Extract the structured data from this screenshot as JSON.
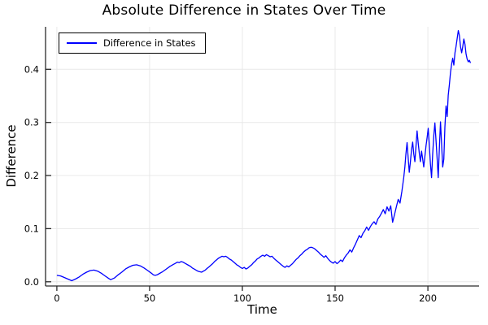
{
  "chart_data": {
    "type": "line",
    "title": "Absolute Difference in States Over Time",
    "xlabel": "Time",
    "ylabel": "Difference",
    "legend": {
      "position": "top-left",
      "entries": [
        "Difference in States"
      ]
    },
    "xlim": [
      -6.1,
      227.6
    ],
    "ylim": [
      -0.008,
      0.48
    ],
    "xticks": [
      0,
      50,
      100,
      150,
      200
    ],
    "xtick_labels": [
      "0",
      "50",
      "100",
      "150",
      "200"
    ],
    "yticks": [
      0.0,
      0.1,
      0.2,
      0.3,
      0.4
    ],
    "ytick_labels": [
      "0.0",
      "0.1",
      "0.2",
      "0.3",
      "0.4"
    ],
    "grid": true,
    "colors": {
      "line": "#0000ff",
      "grid": "#e8e8e8",
      "spine": "#2a2a2a",
      "text": "#000000",
      "background": "#ffffff"
    },
    "series": [
      {
        "name": "Difference in States",
        "color": "#0000ff",
        "x": [
          0,
          2,
          4,
          6,
          8,
          10,
          12,
          14,
          16,
          18,
          20,
          22,
          24,
          26,
          28,
          29,
          31,
          33,
          35,
          37,
          39,
          41,
          43,
          45,
          47,
          49,
          51,
          52,
          53,
          54,
          55,
          57,
          59,
          61,
          63,
          64,
          65,
          66,
          67,
          68,
          69,
          71,
          72,
          73,
          74,
          75,
          76,
          77,
          78,
          79,
          80,
          81,
          82,
          83,
          84,
          85,
          86,
          87,
          88,
          89,
          90,
          91,
          92,
          93,
          94,
          95,
          96,
          97,
          98,
          99,
          100,
          101,
          102,
          103,
          104,
          105,
          106,
          107,
          108,
          109,
          110,
          111,
          112,
          113,
          114,
          115,
          116,
          117,
          118,
          119,
          120,
          121,
          122,
          123,
          124,
          125,
          126,
          127,
          128,
          129,
          130,
          131,
          132,
          133,
          134,
          135,
          136,
          137,
          138,
          139,
          140,
          141,
          142,
          143,
          144,
          145,
          146,
          147,
          148,
          149,
          150,
          151,
          152,
          153,
          154,
          155,
          156,
          157,
          158,
          159,
          160,
          161,
          162,
          163,
          164,
          165,
          166,
          167,
          168,
          169,
          170,
          171,
          172,
          173,
          174,
          175,
          176,
          177,
          178,
          179,
          180,
          181,
          182,
          183,
          184,
          185,
          186,
          187,
          187.6,
          188.2,
          188.8,
          189.4,
          190,
          190.6,
          191.2,
          191.8,
          192.4,
          193,
          193.6,
          194.2,
          194.8,
          195.4,
          196,
          196.6,
          197.2,
          197.8,
          198.4,
          199,
          199.6,
          200.2,
          200.8,
          201.4,
          202,
          202.6,
          203.2,
          203.8,
          204.4,
          205,
          205.6,
          206.2,
          206.8,
          207.4,
          208,
          208.6,
          209.2,
          209.8,
          210.4,
          211,
          211.6,
          212.2,
          212.8,
          213.4,
          214,
          214.6,
          215.2,
          215.8,
          216.4,
          217,
          217.6,
          218.2,
          218.8,
          219.4,
          220,
          220.6,
          221.2,
          221.8,
          222.4,
          223
        ],
        "y": [
          0.012,
          0.011,
          0.008,
          0.005,
          0.002,
          0.005,
          0.009,
          0.014,
          0.018,
          0.021,
          0.022,
          0.02,
          0.016,
          0.011,
          0.006,
          0.004,
          0.007,
          0.013,
          0.018,
          0.024,
          0.028,
          0.031,
          0.032,
          0.03,
          0.026,
          0.021,
          0.016,
          0.013,
          0.012,
          0.013,
          0.015,
          0.019,
          0.024,
          0.029,
          0.033,
          0.035,
          0.037,
          0.036,
          0.038,
          0.037,
          0.035,
          0.031,
          0.029,
          0.026,
          0.024,
          0.022,
          0.02,
          0.019,
          0.018,
          0.02,
          0.022,
          0.025,
          0.028,
          0.031,
          0.034,
          0.038,
          0.041,
          0.044,
          0.046,
          0.048,
          0.047,
          0.048,
          0.046,
          0.043,
          0.041,
          0.038,
          0.035,
          0.032,
          0.03,
          0.027,
          0.025,
          0.027,
          0.024,
          0.026,
          0.029,
          0.032,
          0.036,
          0.039,
          0.043,
          0.045,
          0.048,
          0.05,
          0.048,
          0.051,
          0.049,
          0.047,
          0.048,
          0.044,
          0.041,
          0.038,
          0.035,
          0.032,
          0.029,
          0.027,
          0.03,
          0.028,
          0.031,
          0.034,
          0.038,
          0.042,
          0.045,
          0.049,
          0.052,
          0.056,
          0.059,
          0.061,
          0.064,
          0.065,
          0.064,
          0.062,
          0.059,
          0.056,
          0.052,
          0.049,
          0.046,
          0.049,
          0.044,
          0.04,
          0.037,
          0.035,
          0.038,
          0.034,
          0.037,
          0.041,
          0.038,
          0.045,
          0.05,
          0.054,
          0.06,
          0.056,
          0.064,
          0.071,
          0.079,
          0.087,
          0.083,
          0.091,
          0.096,
          0.103,
          0.097,
          0.104,
          0.109,
          0.113,
          0.108,
          0.118,
          0.123,
          0.129,
          0.136,
          0.128,
          0.141,
          0.133,
          0.143,
          0.112,
          0.126,
          0.141,
          0.155,
          0.148,
          0.17,
          0.196,
          0.216,
          0.241,
          0.262,
          0.232,
          0.206,
          0.226,
          0.249,
          0.263,
          0.241,
          0.226,
          0.256,
          0.284,
          0.261,
          0.241,
          0.226,
          0.246,
          0.231,
          0.216,
          0.236,
          0.256,
          0.271,
          0.289,
          0.256,
          0.222,
          0.196,
          0.241,
          0.276,
          0.299,
          0.266,
          0.231,
          0.196,
          0.251,
          0.301,
          0.261,
          0.216,
          0.231,
          0.291,
          0.331,
          0.311,
          0.351,
          0.371,
          0.394,
          0.409,
          0.421,
          0.408,
          0.431,
          0.443,
          0.458,
          0.473,
          0.464,
          0.443,
          0.431,
          0.442,
          0.457,
          0.447,
          0.429,
          0.419,
          0.414,
          0.417,
          0.412
        ]
      }
    ]
  }
}
